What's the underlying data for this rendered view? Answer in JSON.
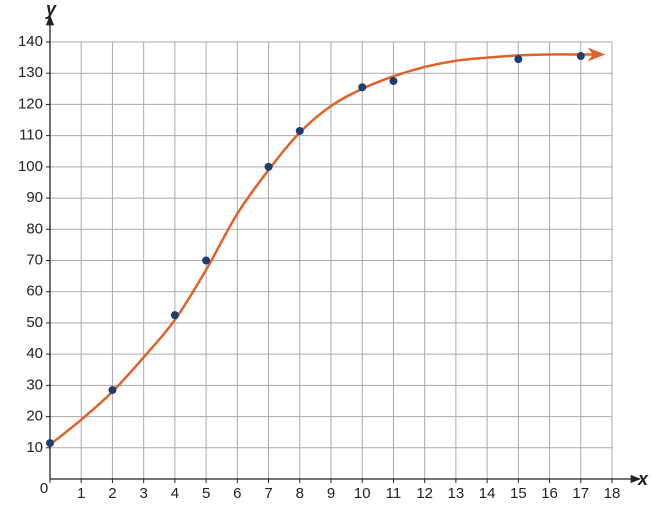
{
  "chart_data": {
    "type": "scatter",
    "x_label": "x",
    "y_label": "y",
    "xlim": [
      0,
      18
    ],
    "ylim": [
      0,
      140
    ],
    "xticks": [
      0,
      1,
      2,
      3,
      4,
      5,
      6,
      7,
      8,
      9,
      10,
      11,
      12,
      13,
      14,
      15,
      16,
      17,
      18
    ],
    "yticks": [
      10,
      20,
      30,
      40,
      50,
      60,
      70,
      80,
      90,
      100,
      110,
      120,
      130,
      140
    ],
    "grid": true,
    "series": [
      {
        "type": "line",
        "color": "#e0622a",
        "arrow": true,
        "x": [
          0,
          1,
          2,
          3,
          4,
          5,
          6,
          7,
          8,
          9,
          10,
          11,
          12,
          13,
          14,
          15,
          16,
          17,
          17.5
        ],
        "values": [
          11,
          19,
          28,
          39,
          51,
          67,
          85,
          99,
          111,
          119.5,
          125,
          129,
          132,
          134,
          135,
          135.7,
          136,
          136,
          136
        ]
      },
      {
        "type": "scatter",
        "color": "#1f3c6e",
        "x": [
          0,
          2,
          4,
          5,
          7,
          8,
          10,
          11,
          15,
          17
        ],
        "values": [
          11.5,
          28.5,
          52.5,
          70,
          100,
          111.5,
          125.5,
          127.5,
          134.5,
          135.5
        ]
      }
    ]
  }
}
